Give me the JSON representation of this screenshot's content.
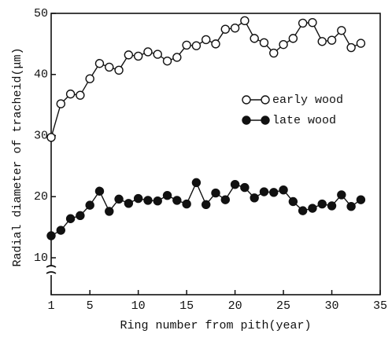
{
  "chart_data": {
    "type": "line",
    "xlabel": "Ring number from pith(year)",
    "ylabel": "Radial diameter of tracheid(μm)",
    "x": [
      1,
      2,
      3,
      4,
      5,
      6,
      7,
      8,
      9,
      10,
      11,
      12,
      13,
      14,
      15,
      16,
      17,
      18,
      19,
      20,
      21,
      22,
      23,
      24,
      25,
      26,
      27,
      28,
      29,
      30,
      31,
      32,
      33
    ],
    "series": [
      {
        "name": "early wood",
        "color": "#111111",
        "marker": "open",
        "values": [
          29.7,
          35.2,
          36.8,
          36.6,
          39.3,
          41.8,
          41.2,
          40.7,
          43.2,
          43.0,
          43.7,
          43.3,
          42.2,
          42.8,
          44.8,
          44.7,
          45.7,
          45.0,
          47.4,
          47.6,
          48.8,
          45.9,
          45.2,
          43.5,
          44.9,
          45.9,
          48.4,
          48.5,
          45.4,
          45.6,
          47.2,
          44.4,
          45.1
        ]
      },
      {
        "name": "late wood",
        "color": "#111111",
        "marker": "filled",
        "values": [
          13.6,
          14.5,
          16.4,
          16.9,
          18.6,
          20.9,
          17.6,
          19.6,
          18.9,
          19.7,
          19.4,
          19.3,
          20.2,
          19.4,
          18.8,
          22.3,
          18.7,
          20.6,
          19.5,
          22.0,
          21.5,
          19.8,
          20.8,
          20.7,
          21.1,
          19.2,
          17.7,
          18.1,
          18.8,
          18.5,
          20.3,
          18.4,
          19.5
        ]
      }
    ],
    "xlim": [
      1,
      35
    ],
    "xticks": [
      1,
      5,
      10,
      15,
      20,
      25,
      30,
      35
    ],
    "ylim": [
      10,
      50
    ],
    "yticks": [
      10,
      20,
      30,
      40,
      50
    ],
    "grid": false,
    "legend": "upper right"
  }
}
